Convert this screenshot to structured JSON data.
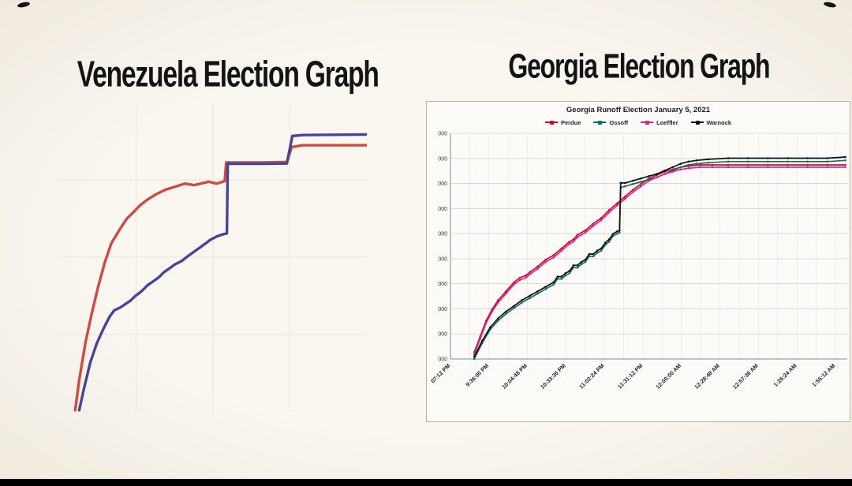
{
  "page": {
    "background_color": "#f8f4ee",
    "footer_bar_color": "#000000"
  },
  "headings": {
    "left": "Venezuela Election Graph",
    "right": "Georgia Election Graph"
  },
  "chart_data": [
    {
      "type": "line",
      "name": "venezuela-election-graph",
      "title": "Venezuela Election Graph",
      "xlabel": "",
      "ylabel": "",
      "axis_labels_visible": false,
      "grid": true,
      "coords": "percent_of_plot_area_origin_bottom_left",
      "series": [
        {
          "name": "red-line",
          "color": "#cf4a42",
          "points_pct": [
            [
              5.2,
              0.5
            ],
            [
              6.5,
              10.3
            ],
            [
              8.6,
              22.6
            ],
            [
              10.6,
              31.8
            ],
            [
              12.7,
              40.5
            ],
            [
              14.8,
              48.2
            ],
            [
              16.9,
              54.4
            ],
            [
              18.4,
              56.9
            ],
            [
              20,
              59.5
            ],
            [
              22.1,
              62.6
            ],
            [
              24.2,
              64.6
            ],
            [
              26.2,
              66.7
            ],
            [
              28.8,
              68.7
            ],
            [
              31.4,
              70.3
            ],
            [
              34.5,
              71.8
            ],
            [
              37.7,
              72.8
            ],
            [
              40.8,
              73.8
            ],
            [
              43.9,
              73.3
            ],
            [
              46,
              73.8
            ],
            [
              48.6,
              74.4
            ],
            [
              51.2,
              73.8
            ],
            [
              53.8,
              74.6
            ],
            [
              54.3,
              80.6
            ],
            [
              58.4,
              80.6
            ],
            [
              66.2,
              80.6
            ],
            [
              74,
              80.8
            ],
            [
              75.6,
              85.6
            ],
            [
              79.2,
              86.2
            ],
            [
              100,
              86.2
            ]
          ]
        },
        {
          "name": "blue-line",
          "color": "#45459a",
          "points_pct": [
            [
              6.5,
              0.5
            ],
            [
              8.1,
              7.7
            ],
            [
              10.1,
              15.9
            ],
            [
              12.2,
              22.1
            ],
            [
              14.3,
              26.7
            ],
            [
              16.4,
              30.8
            ],
            [
              17.9,
              32.8
            ],
            [
              20,
              33.8
            ],
            [
              21.6,
              34.9
            ],
            [
              23.1,
              35.9
            ],
            [
              24.7,
              37.4
            ],
            [
              26.8,
              39
            ],
            [
              28.8,
              41
            ],
            [
              30.4,
              42.1
            ],
            [
              32.5,
              43.6
            ],
            [
              34,
              45.1
            ],
            [
              35.6,
              46.2
            ],
            [
              37.7,
              47.7
            ],
            [
              39.7,
              48.7
            ],
            [
              41.8,
              50.3
            ],
            [
              43.9,
              51.8
            ],
            [
              46,
              53.3
            ],
            [
              47.5,
              54.4
            ],
            [
              49.1,
              55.6
            ],
            [
              51.2,
              56.7
            ],
            [
              53.2,
              57.4
            ],
            [
              54.5,
              57.7
            ],
            [
              54.8,
              80.2
            ],
            [
              58.4,
              80.2
            ],
            [
              66.2,
              80.2
            ],
            [
              74,
              80.3
            ],
            [
              75.8,
              89.2
            ],
            [
              79.2,
              89.5
            ],
            [
              100,
              89.7
            ]
          ]
        }
      ]
    },
    {
      "type": "line",
      "name": "georgia-runoff-election",
      "title": "Georgia Runoff Election January 5, 2021",
      "legend_position": "top",
      "grid": true,
      "y_axis_labels_truncated": true,
      "y_tick_labels": [
        "000",
        "000",
        "000",
        "000",
        "000",
        "000",
        "000",
        "000",
        "000",
        "000"
      ],
      "x_tick_labels": [
        "07:12 PM",
        "9:36:00 PM",
        "10:04:48 PM",
        "10:33:36 PM",
        "11:02:24 PM",
        "11:31:12 PM",
        "12:00:00 AM",
        "12:28:48 AM",
        "12:57:36 AM",
        "1:26:24 AM",
        "1:55:12 AM"
      ],
      "coords": "percent_of_plot_area_origin_bottom_left",
      "series": [
        {
          "name": "Perdue",
          "color": "#c51220",
          "points_pct": [
            [
              6,
              3
            ],
            [
              7.5,
              10
            ],
            [
              9,
              17
            ],
            [
              10.5,
              22
            ],
            [
              12,
              26
            ],
            [
              14,
              30
            ],
            [
              16,
              34
            ],
            [
              17.5,
              36
            ],
            [
              19,
              37
            ],
            [
              20,
              38.5
            ],
            [
              22,
              41
            ],
            [
              24,
              44
            ],
            [
              26,
              46
            ],
            [
              28,
              49
            ],
            [
              30,
              52
            ],
            [
              31,
              53
            ],
            [
              32,
              55
            ],
            [
              34,
              57
            ],
            [
              36,
              60
            ],
            [
              38,
              62.5
            ],
            [
              40,
              66
            ],
            [
              42,
              69
            ],
            [
              44,
              72
            ],
            [
              46,
              75
            ],
            [
              48,
              77.5
            ],
            [
              50,
              80
            ],
            [
              52,
              81.5
            ],
            [
              54,
              83
            ],
            [
              56,
              84
            ],
            [
              58,
              85
            ],
            [
              60,
              85.5
            ],
            [
              63,
              86
            ],
            [
              66,
              86
            ],
            [
              70,
              86
            ],
            [
              75,
              86
            ],
            [
              80,
              86
            ],
            [
              85,
              86
            ],
            [
              90,
              86
            ],
            [
              95,
              86
            ],
            [
              99.5,
              86
            ]
          ]
        },
        {
          "name": "Ossoff",
          "color": "#176b66",
          "points_pct": [
            [
              6,
              0
            ],
            [
              8,
              7
            ],
            [
              10,
              13
            ],
            [
              12,
              17
            ],
            [
              14,
              20
            ],
            [
              16,
              22.5
            ],
            [
              18,
              25
            ],
            [
              20,
              27
            ],
            [
              22,
              29
            ],
            [
              24,
              31
            ],
            [
              26,
              33
            ],
            [
              27,
              35.5
            ],
            [
              28,
              35.5
            ],
            [
              29,
              37
            ],
            [
              30,
              38
            ],
            [
              31,
              40.5
            ],
            [
              32,
              40.5
            ],
            [
              33,
              42
            ],
            [
              34,
              43
            ],
            [
              35,
              45.5
            ],
            [
              36,
              45.5
            ],
            [
              37,
              47
            ],
            [
              38,
              48
            ],
            [
              39,
              50.5
            ],
            [
              40,
              52
            ],
            [
              41,
              54.5
            ],
            [
              42,
              55.5
            ],
            [
              42.6,
              56
            ],
            [
              42.9,
              76
            ],
            [
              44,
              76.5
            ],
            [
              46,
              77.5
            ],
            [
              48,
              78.5
            ],
            [
              50,
              79.5
            ],
            [
              52,
              80.5
            ],
            [
              54,
              82
            ],
            [
              56,
              83.5
            ],
            [
              58,
              85
            ],
            [
              60,
              86
            ],
            [
              62,
              86.5
            ],
            [
              65,
              87
            ],
            [
              70,
              87.5
            ],
            [
              75,
              87.5
            ],
            [
              80,
              87.5
            ],
            [
              85,
              87.5
            ],
            [
              90,
              87.5
            ],
            [
              95,
              87.5
            ],
            [
              99.5,
              88
            ]
          ]
        },
        {
          "name": "Loeffler",
          "color": "#d6219c",
          "points_pct": [
            [
              6,
              2
            ],
            [
              7.5,
              9
            ],
            [
              9,
              16
            ],
            [
              10.5,
              21
            ],
            [
              12,
              25
            ],
            [
              14,
              29
            ],
            [
              16,
              33
            ],
            [
              17.5,
              35
            ],
            [
              19,
              36
            ],
            [
              20,
              37.5
            ],
            [
              22,
              40
            ],
            [
              24,
              43
            ],
            [
              26,
              45
            ],
            [
              28,
              48
            ],
            [
              30,
              51
            ],
            [
              31,
              52
            ],
            [
              32,
              54
            ],
            [
              34,
              56
            ],
            [
              36,
              59
            ],
            [
              38,
              61.5
            ],
            [
              40,
              65
            ],
            [
              42,
              68
            ],
            [
              44,
              71
            ],
            [
              46,
              74
            ],
            [
              48,
              76.5
            ],
            [
              50,
              79
            ],
            [
              52,
              80.5
            ],
            [
              54,
              82
            ],
            [
              56,
              83
            ],
            [
              58,
              84
            ],
            [
              60,
              84.5
            ],
            [
              63,
              85
            ],
            [
              66,
              85
            ],
            [
              70,
              85
            ],
            [
              75,
              85
            ],
            [
              80,
              85
            ],
            [
              85,
              85
            ],
            [
              90,
              85
            ],
            [
              95,
              85
            ],
            [
              99.5,
              85
            ]
          ]
        },
        {
          "name": "Warnock",
          "color": "#111111",
          "points_pct": [
            [
              6,
              1
            ],
            [
              8,
              8
            ],
            [
              10,
              14
            ],
            [
              12,
              18
            ],
            [
              14,
              21
            ],
            [
              16,
              23.5
            ],
            [
              18,
              26
            ],
            [
              20,
              28
            ],
            [
              22,
              30
            ],
            [
              24,
              32
            ],
            [
              26,
              34
            ],
            [
              27,
              36.5
            ],
            [
              28,
              36.5
            ],
            [
              29,
              38
            ],
            [
              30,
              39
            ],
            [
              31,
              41.5
            ],
            [
              32,
              41.5
            ],
            [
              33,
              43
            ],
            [
              34,
              44
            ],
            [
              35,
              46.5
            ],
            [
              36,
              46.5
            ],
            [
              37,
              48
            ],
            [
              38,
              49
            ],
            [
              39,
              51.5
            ],
            [
              40,
              53
            ],
            [
              41,
              55.5
            ],
            [
              42,
              56.5
            ],
            [
              42.6,
              57
            ],
            [
              42.9,
              78
            ],
            [
              44,
              78
            ],
            [
              46,
              79
            ],
            [
              48,
              80
            ],
            [
              50,
              81
            ],
            [
              52,
              82
            ],
            [
              54,
              83.5
            ],
            [
              56,
              85
            ],
            [
              58,
              86.5
            ],
            [
              60,
              87.5
            ],
            [
              62,
              88
            ],
            [
              65,
              88.5
            ],
            [
              70,
              89
            ],
            [
              75,
              89
            ],
            [
              80,
              89
            ],
            [
              85,
              89
            ],
            [
              90,
              89
            ],
            [
              95,
              89
            ],
            [
              99.5,
              89.5
            ]
          ]
        }
      ]
    }
  ]
}
